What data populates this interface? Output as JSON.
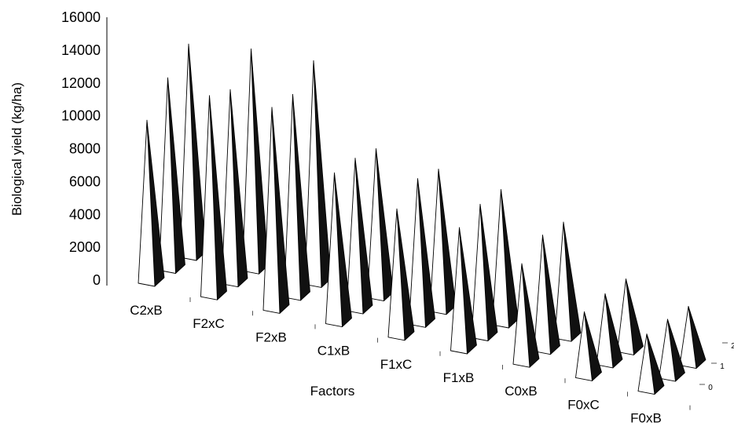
{
  "chart_data": {
    "type": "bar",
    "style": "3d-pyramid",
    "title": "",
    "ylabel": "Biological yield (kg/ha)",
    "xlabel": "Factors",
    "ylim": [
      0,
      16000
    ],
    "yticks": [
      "16000",
      "14000",
      "12000",
      "10000",
      "8000",
      "6000",
      "4000",
      "2000",
      "0"
    ],
    "categories": [
      "C2xB",
      "F2xC",
      "F2xB",
      "C1xB",
      "F1xC",
      "F1xB",
      "C0xB",
      "F0xC",
      "F0xB"
    ],
    "depth_ticks": [
      "0",
      "1",
      "2"
    ],
    "series": [
      {
        "values": [
          9400,
          11600,
          11700,
          8700,
          7400,
          7100,
          5800,
          3800,
          3300
        ]
      },
      {
        "values": [
          11100,
          11200,
          11700,
          8800,
          8400,
          7700,
          6700,
          4100,
          3400
        ]
      },
      {
        "values": [
          12300,
          12800,
          12900,
          8600,
          8200,
          7800,
          6700,
          4200,
          3400
        ]
      }
    ],
    "grid": false,
    "legend": "none",
    "colors": {
      "light_face": "#ffffff",
      "dark_face": "#111111",
      "outline": "#000000"
    }
  }
}
